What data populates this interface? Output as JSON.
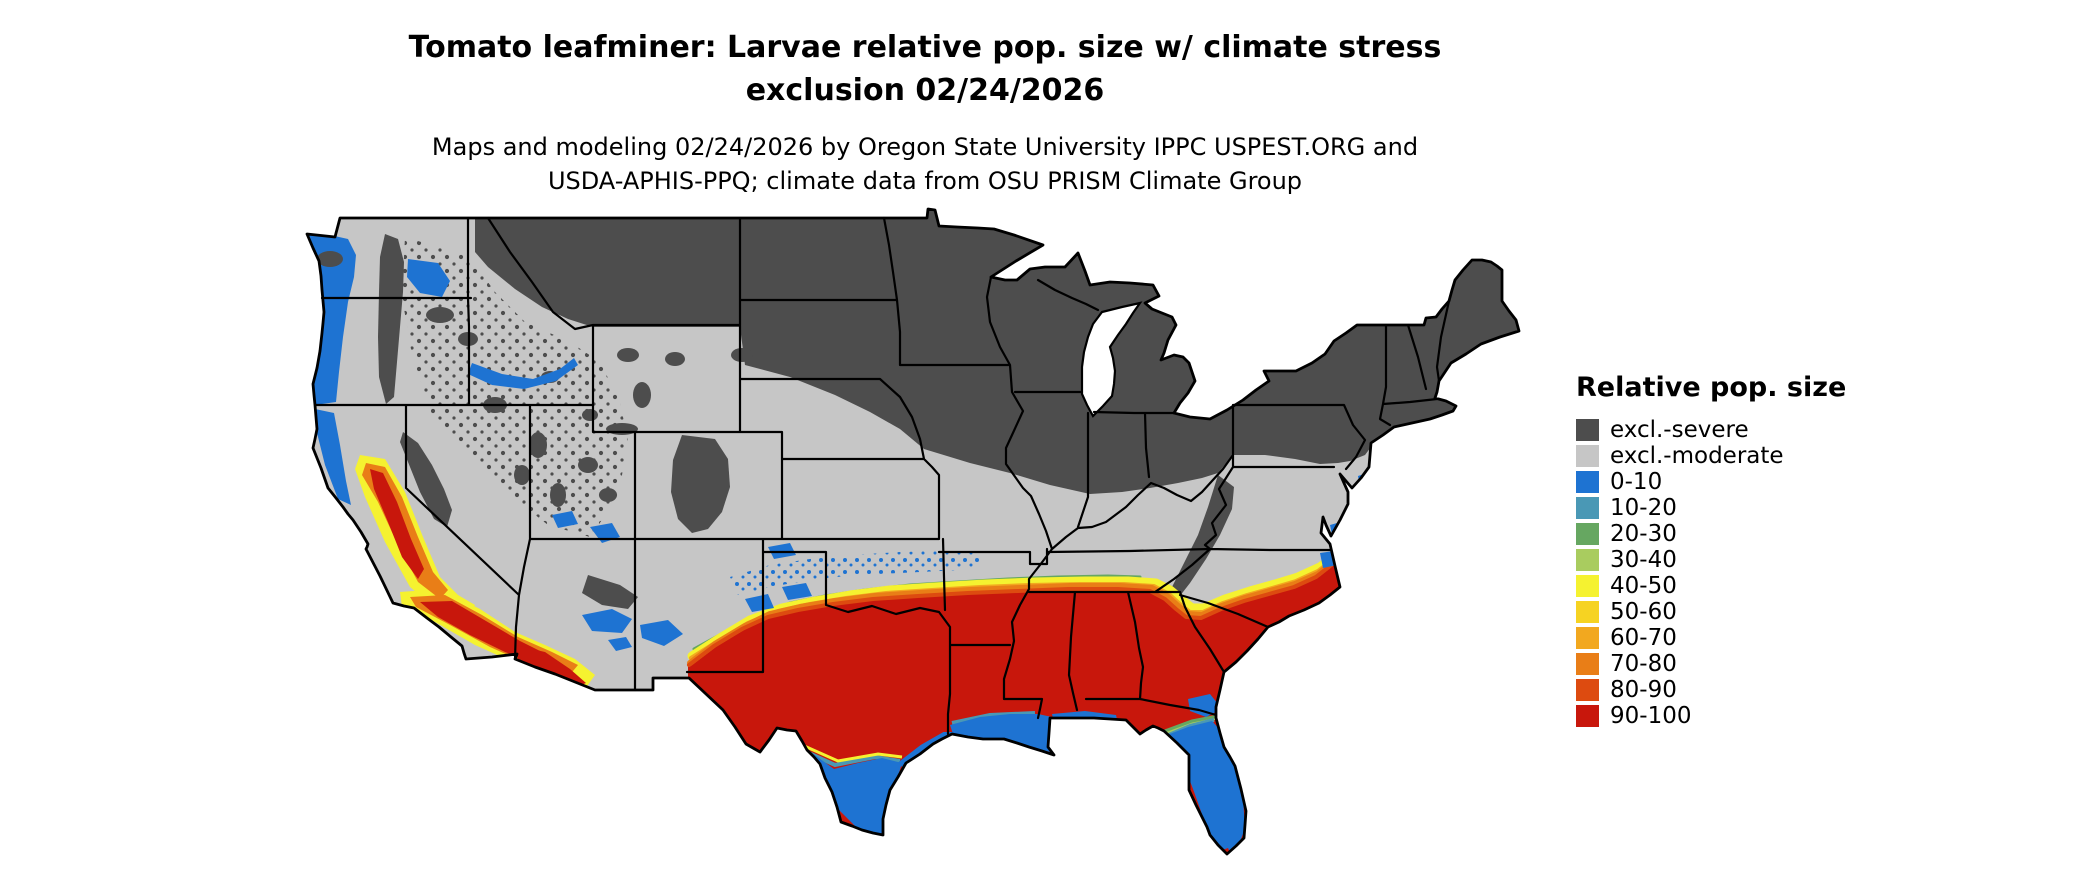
{
  "header": {
    "title_line1": "Tomato leafminer: Larvae relative pop. size w/ climate stress",
    "title_line2": "exclusion 02/24/2026",
    "subtitle_line1": "Maps and modeling 02/24/2026 by Oregon State University IPPC USPEST.ORG and",
    "subtitle_line2": "USDA-APHIS-PPQ; climate data from OSU PRISM Climate Group"
  },
  "legend": {
    "title": "Relative pop. size",
    "items": [
      {
        "label": "excl.-severe",
        "color": "#4d4d4d"
      },
      {
        "label": "excl.-moderate",
        "color": "#c6c6c6"
      },
      {
        "label": "0-10",
        "color": "#1e73d2"
      },
      {
        "label": "10-20",
        "color": "#4a98b5"
      },
      {
        "label": "20-30",
        "color": "#66a761"
      },
      {
        "label": "30-40",
        "color": "#a9cc5f"
      },
      {
        "label": "40-50",
        "color": "#f5f230"
      },
      {
        "label": "50-60",
        "color": "#f6d322"
      },
      {
        "label": "60-70",
        "color": "#f2a81f"
      },
      {
        "label": "70-80",
        "color": "#e97e17"
      },
      {
        "label": "80-90",
        "color": "#dd4b10"
      },
      {
        "label": "90-100",
        "color": "#c8170c"
      }
    ]
  }
}
